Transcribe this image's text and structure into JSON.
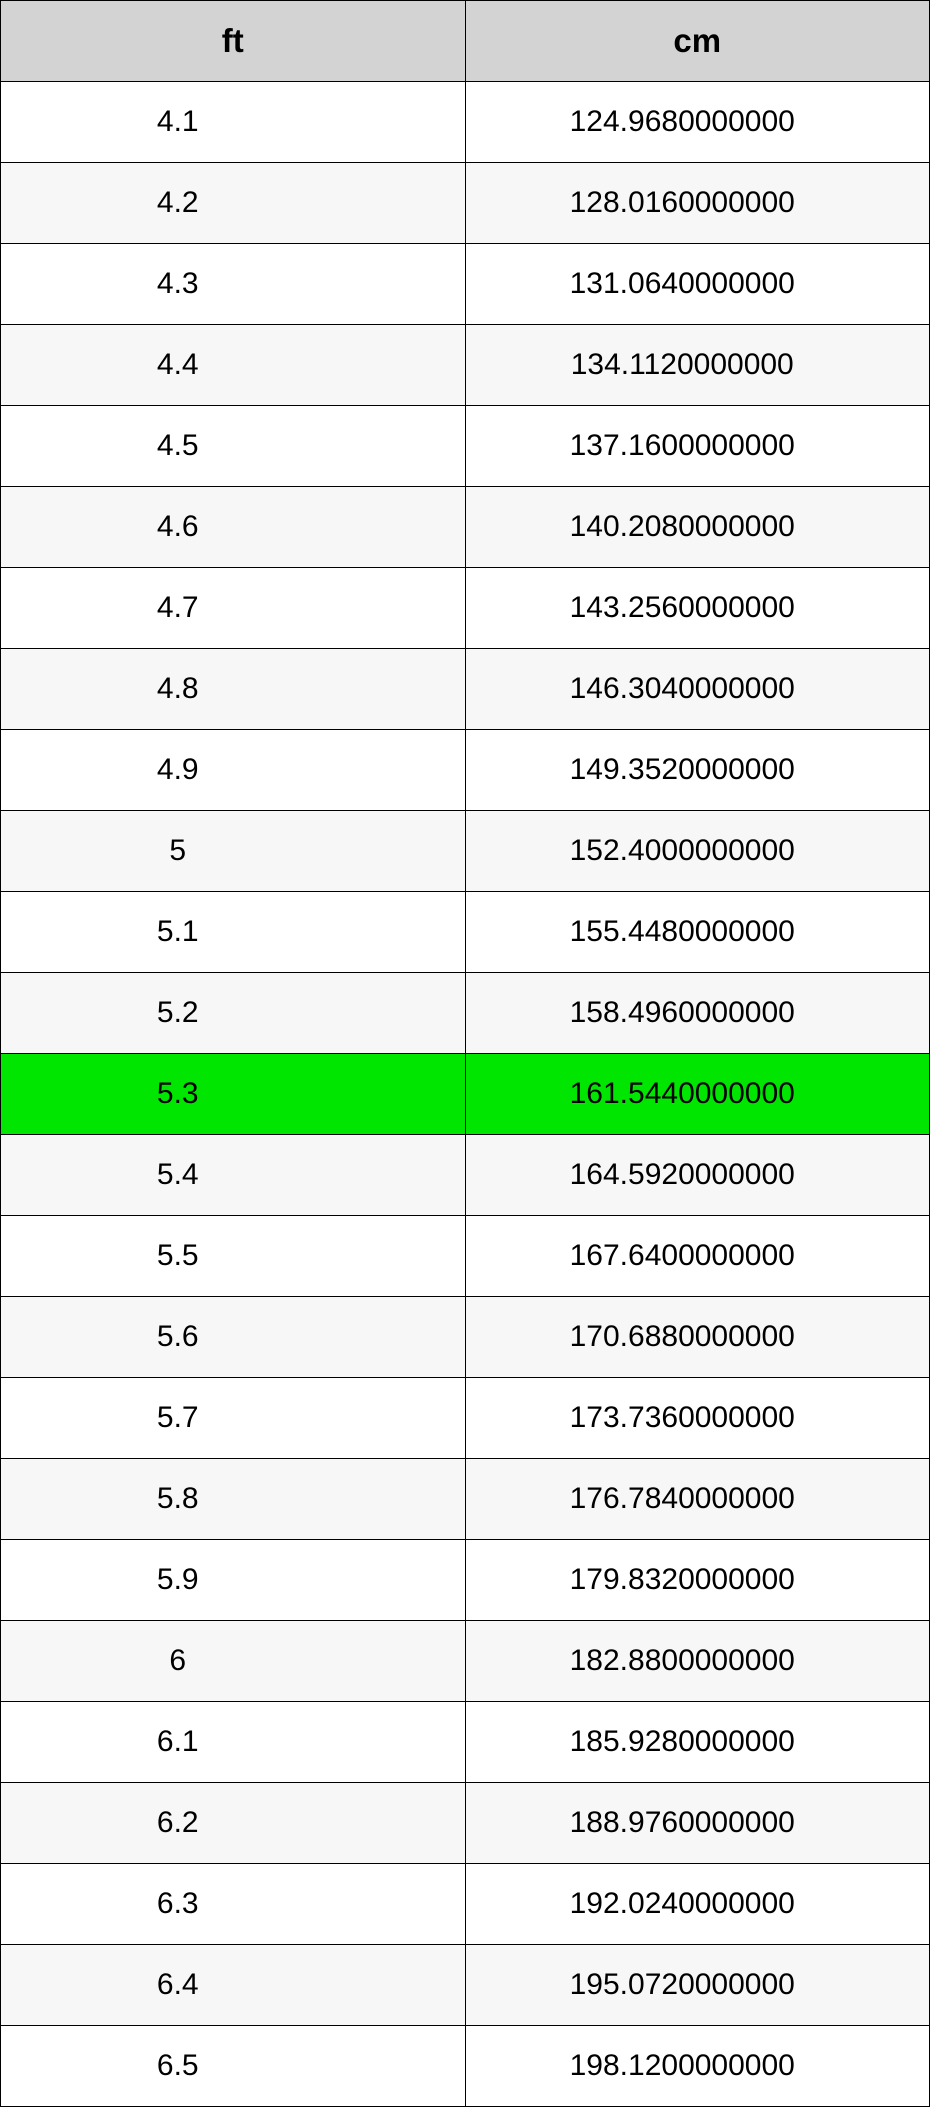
{
  "table": {
    "columns": [
      "ft",
      "cm"
    ],
    "header_bg": "#d3d3d3",
    "row_alt_bg": "#f7f7f7",
    "row_bg": "#ffffff",
    "highlight_bg": "#00e600",
    "border_color": "#000000",
    "font_family": "Helvetica Neue",
    "header_fontsize": 33,
    "cell_fontsize": 30,
    "highlight_index": 12,
    "rows": [
      {
        "ft": "4.1",
        "cm": "124.9680000000"
      },
      {
        "ft": "4.2",
        "cm": "128.0160000000"
      },
      {
        "ft": "4.3",
        "cm": "131.0640000000"
      },
      {
        "ft": "4.4",
        "cm": "134.1120000000"
      },
      {
        "ft": "4.5",
        "cm": "137.1600000000"
      },
      {
        "ft": "4.6",
        "cm": "140.2080000000"
      },
      {
        "ft": "4.7",
        "cm": "143.2560000000"
      },
      {
        "ft": "4.8",
        "cm": "146.3040000000"
      },
      {
        "ft": "4.9",
        "cm": "149.3520000000"
      },
      {
        "ft": "5",
        "cm": "152.4000000000"
      },
      {
        "ft": "5.1",
        "cm": "155.4480000000"
      },
      {
        "ft": "5.2",
        "cm": "158.4960000000"
      },
      {
        "ft": "5.3",
        "cm": "161.5440000000"
      },
      {
        "ft": "5.4",
        "cm": "164.5920000000"
      },
      {
        "ft": "5.5",
        "cm": "167.6400000000"
      },
      {
        "ft": "5.6",
        "cm": "170.6880000000"
      },
      {
        "ft": "5.7",
        "cm": "173.7360000000"
      },
      {
        "ft": "5.8",
        "cm": "176.7840000000"
      },
      {
        "ft": "5.9",
        "cm": "179.8320000000"
      },
      {
        "ft": "6",
        "cm": "182.8800000000"
      },
      {
        "ft": "6.1",
        "cm": "185.9280000000"
      },
      {
        "ft": "6.2",
        "cm": "188.9760000000"
      },
      {
        "ft": "6.3",
        "cm": "192.0240000000"
      },
      {
        "ft": "6.4",
        "cm": "195.0720000000"
      },
      {
        "ft": "6.5",
        "cm": "198.1200000000"
      }
    ]
  }
}
